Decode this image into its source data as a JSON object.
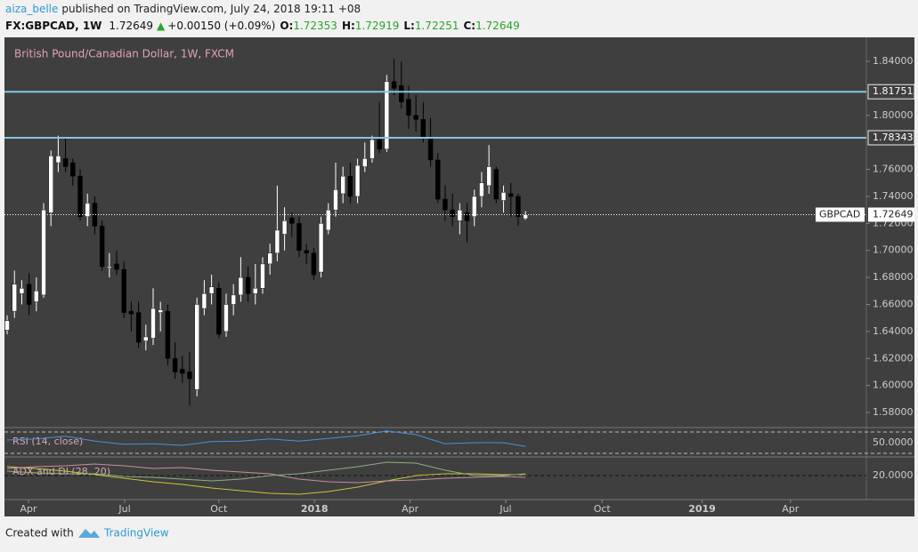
{
  "header": {
    "user": "aiza_belle",
    "published": "published on TradingView.com, July 24, 2018 19:11 +08",
    "symbol": "FX:GBPCAD, 1W",
    "price": "1.72649",
    "arrow": "▲",
    "change": "+0.00150 (+0.09%)",
    "o": "O:",
    "o_val": "1.72353",
    "h": "H:",
    "h_val": "1.72919",
    "l": "L:",
    "l_val": "1.72251",
    "c": "C:",
    "c_val": "1.72649"
  },
  "footer": {
    "created": "Created with",
    "brand": "TradingView"
  },
  "chart_data": [
    {
      "type": "candlestick",
      "title": "British Pound/Canadian Dollar, 1W, FXCM",
      "up_color": "#ffffff",
      "down_color": "#000000",
      "candles": [
        [
          1.641,
          1.652,
          1.638,
          1.648
        ],
        [
          1.655,
          1.685,
          1.65,
          1.675
        ],
        [
          1.668,
          1.678,
          1.66,
          1.672
        ],
        [
          1.675,
          1.683,
          1.652,
          1.66
        ],
        [
          1.662,
          1.68,
          1.655,
          1.67
        ],
        [
          1.667,
          1.735,
          1.665,
          1.73
        ],
        [
          1.728,
          1.774,
          1.718,
          1.77
        ],
        [
          1.765,
          1.785,
          1.758,
          1.77
        ],
        [
          1.768,
          1.783,
          1.758,
          1.762
        ],
        [
          1.765,
          1.768,
          1.748,
          1.755
        ],
        [
          1.755,
          1.76,
          1.722,
          1.725
        ],
        [
          1.725,
          1.742,
          1.718,
          1.735
        ],
        [
          1.735,
          1.74,
          1.712,
          1.718
        ],
        [
          1.718,
          1.722,
          1.685,
          1.688
        ],
        [
          1.687,
          1.698,
          1.68,
          1.688
        ],
        [
          1.69,
          1.7,
          1.682,
          1.686
        ],
        [
          1.686,
          1.692,
          1.65,
          1.654
        ],
        [
          1.655,
          1.662,
          1.64,
          1.653
        ],
        [
          1.654,
          1.662,
          1.628,
          1.632
        ],
        [
          1.633,
          1.645,
          1.626,
          1.636
        ],
        [
          1.635,
          1.672,
          1.63,
          1.657
        ],
        [
          1.654,
          1.662,
          1.64,
          1.656
        ],
        [
          1.655,
          1.66,
          1.615,
          1.62
        ],
        [
          1.62,
          1.632,
          1.605,
          1.61
        ],
        [
          1.612,
          1.622,
          1.602,
          1.609
        ],
        [
          1.61,
          1.625,
          1.585,
          1.605
        ],
        [
          1.597,
          1.665,
          1.592,
          1.66
        ],
        [
          1.657,
          1.678,
          1.652,
          1.668
        ],
        [
          1.668,
          1.682,
          1.66,
          1.673
        ],
        [
          1.672,
          1.676,
          1.635,
          1.638
        ],
        [
          1.64,
          1.668,
          1.636,
          1.66
        ],
        [
          1.66,
          1.675,
          1.652,
          1.667
        ],
        [
          1.667,
          1.695,
          1.662,
          1.68
        ],
        [
          1.68,
          1.688,
          1.662,
          1.668
        ],
        [
          1.668,
          1.69,
          1.66,
          1.672
        ],
        [
          1.672,
          1.695,
          1.668,
          1.69
        ],
        [
          1.69,
          1.705,
          1.682,
          1.698
        ],
        [
          1.698,
          1.748,
          1.692,
          1.715
        ],
        [
          1.712,
          1.732,
          1.7,
          1.722
        ],
        [
          1.724,
          1.728,
          1.71,
          1.72
        ],
        [
          1.72,
          1.725,
          1.695,
          1.7
        ],
        [
          1.7,
          1.705,
          1.69,
          1.698
        ],
        [
          1.698,
          1.702,
          1.678,
          1.682
        ],
        [
          1.684,
          1.725,
          1.68,
          1.72
        ],
        [
          1.715,
          1.735,
          1.712,
          1.73
        ],
        [
          1.73,
          1.765,
          1.725,
          1.745
        ],
        [
          1.742,
          1.762,
          1.735,
          1.755
        ],
        [
          1.755,
          1.765,
          1.735,
          1.74
        ],
        [
          1.74,
          1.768,
          1.735,
          1.763
        ],
        [
          1.762,
          1.78,
          1.758,
          1.768
        ],
        [
          1.768,
          1.785,
          1.765,
          1.782
        ],
        [
          1.782,
          1.81,
          1.772,
          1.775
        ],
        [
          1.775,
          1.83,
          1.773,
          1.825
        ],
        [
          1.825,
          1.842,
          1.815,
          1.82
        ],
        [
          1.822,
          1.84,
          1.805,
          1.81
        ],
        [
          1.812,
          1.822,
          1.79,
          1.8
        ],
        [
          1.8,
          1.815,
          1.788,
          1.797
        ],
        [
          1.797,
          1.81,
          1.78,
          1.783
        ],
        [
          1.783,
          1.798,
          1.762,
          1.767
        ],
        [
          1.767,
          1.772,
          1.735,
          1.738
        ],
        [
          1.738,
          1.748,
          1.722,
          1.73
        ],
        [
          1.73,
          1.742,
          1.718,
          1.725
        ],
        [
          1.722,
          1.735,
          1.712,
          1.73
        ],
        [
          1.728,
          1.735,
          1.706,
          1.722
        ],
        [
          1.725,
          1.745,
          1.718,
          1.74
        ],
        [
          1.74,
          1.758,
          1.732,
          1.75
        ],
        [
          1.748,
          1.778,
          1.742,
          1.762
        ],
        [
          1.76,
          1.762,
          1.735,
          1.738
        ],
        [
          1.737,
          1.748,
          1.728,
          1.743
        ],
        [
          1.742,
          1.75,
          1.725,
          1.74
        ],
        [
          1.74,
          1.742,
          1.718,
          1.725
        ],
        [
          1.72353,
          1.72919,
          1.72251,
          1.72649
        ]
      ],
      "xlim": [
        -0.37,
        117.7
      ],
      "xticks": [
        {
          "value": 2.93,
          "label": "Apr"
        },
        {
          "value": 16.1,
          "label": "Jul"
        },
        {
          "value": 29.0,
          "label": "Oct"
        },
        {
          "value": 42.1,
          "label": "2018"
        },
        {
          "value": 55.2,
          "label": "Apr"
        },
        {
          "value": 68.3,
          "label": "Jul"
        },
        {
          "value": 81.5,
          "label": "Oct"
        },
        {
          "value": 95.2,
          "label": "2019"
        },
        {
          "value": 107.3,
          "label": "Apr"
        }
      ],
      "ylim": [
        1.5695,
        1.8578
      ],
      "yticks": [
        {
          "value": 1.84,
          "label": "1.84000"
        },
        {
          "value": 1.8,
          "label": "1.80000"
        },
        {
          "value": 1.76,
          "label": "1.76000"
        },
        {
          "value": 1.74,
          "label": "1.74000"
        },
        {
          "value": 1.72,
          "label": "1.72000"
        },
        {
          "value": 1.7,
          "label": "1.70000"
        },
        {
          "value": 1.68,
          "label": "1.68000"
        },
        {
          "value": 1.66,
          "label": "1.66000"
        },
        {
          "value": 1.64,
          "label": "1.64000"
        },
        {
          "value": 1.62,
          "label": "1.62000"
        },
        {
          "value": 1.6,
          "label": "1.60000"
        },
        {
          "value": 1.58,
          "label": "1.58000"
        }
      ],
      "hlines": [
        {
          "value": 1.81751,
          "label": "1.81751",
          "color": "#7ec8e3"
        },
        {
          "value": 1.78343,
          "label": "1.78343",
          "color": "#7ec8e3"
        }
      ],
      "last_price": {
        "symbol": "GBPCAD",
        "value": 1.72649,
        "label": "1.72649"
      }
    },
    {
      "type": "line",
      "title": "RSI (14, close)",
      "ylim": [
        25,
        78.3
      ],
      "levels": [
        70,
        30
      ],
      "yticks": [
        {
          "value": 50,
          "label": "50.0000"
        }
      ],
      "x": [
        0,
        4,
        8,
        12,
        16,
        20,
        24,
        28,
        32,
        36,
        40,
        44,
        48,
        52,
        56,
        60,
        64,
        68,
        71
      ],
      "series": [
        {
          "color": "#4a90d9",
          "values": [
            55,
            57,
            62,
            53,
            47,
            48,
            45,
            52,
            53,
            57,
            53,
            58,
            63,
            72,
            65,
            48,
            50,
            50,
            43
          ]
        }
      ]
    },
    {
      "type": "line",
      "title": "ADX and DI (28, 20)",
      "ylim": [
        6.5,
        30
      ],
      "yticks": [
        {
          "value": 20,
          "label": "20.0000"
        }
      ],
      "x": [
        0,
        4,
        8,
        12,
        16,
        20,
        24,
        28,
        32,
        36,
        40,
        44,
        48,
        52,
        56,
        60,
        64,
        68,
        71
      ],
      "series": [
        {
          "color": "#c8c832",
          "values": [
            25,
            24,
            22.5,
            20.5,
            18.5,
            16.5,
            15,
            13,
            11.5,
            10,
            9.5,
            11,
            13.5,
            17,
            20,
            21,
            21,
            20.5,
            20.5
          ]
        },
        {
          "color": "#c98f9b",
          "values": [
            24,
            25,
            25.5,
            26.5,
            25.5,
            24,
            24.5,
            23,
            22,
            21,
            18,
            16.5,
            16,
            17,
            17.5,
            18.5,
            19,
            19.5,
            19
          ]
        },
        {
          "color": "#8fae84",
          "values": [
            22.5,
            21.5,
            21,
            21,
            19.5,
            19,
            18,
            17,
            18,
            20,
            21,
            23,
            25,
            27.5,
            27,
            23,
            20,
            20,
            21
          ]
        }
      ]
    }
  ]
}
